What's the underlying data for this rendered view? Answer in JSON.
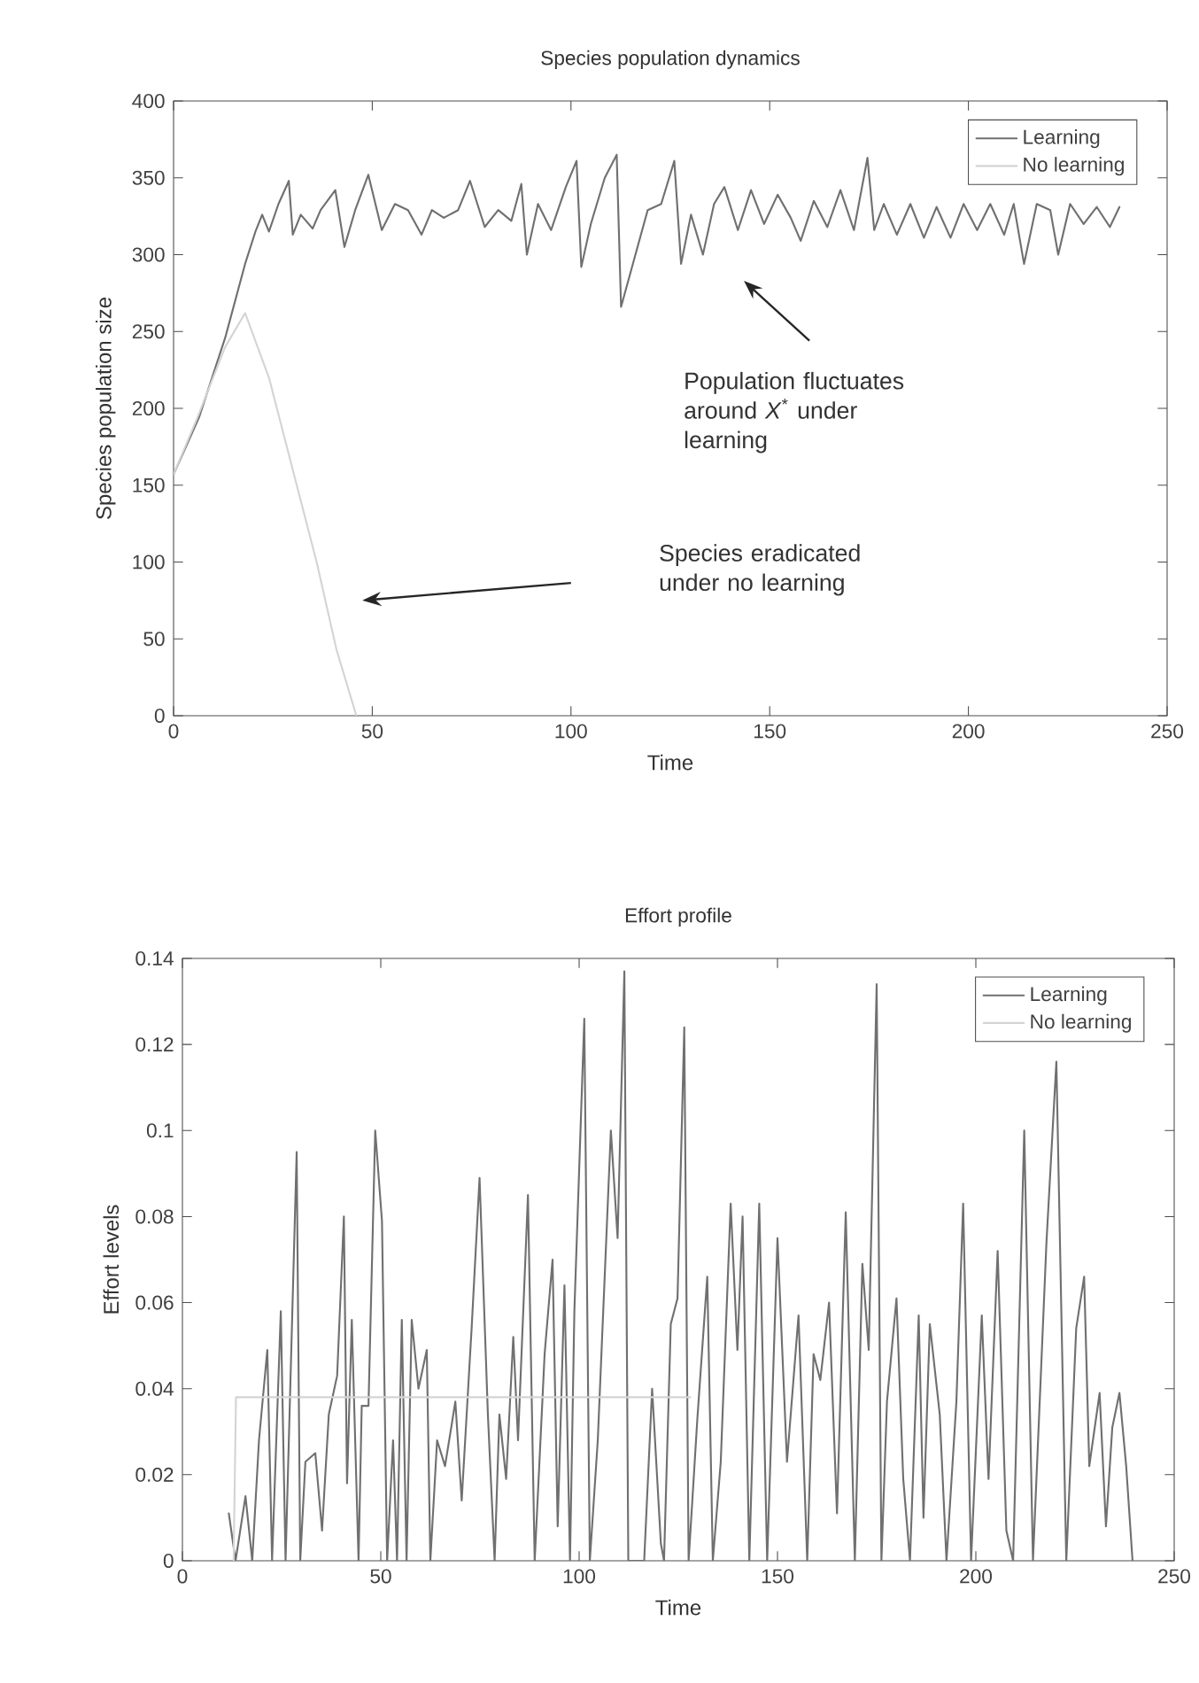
{
  "chart_data": [
    {
      "type": "line",
      "title": "Species population dynamics",
      "xlabel": "Time",
      "ylabel": "Species population size",
      "xlim": [
        0,
        250
      ],
      "ylim": [
        0,
        400
      ],
      "xticks": [
        0,
        50,
        100,
        150,
        200,
        250
      ],
      "yticks": [
        0,
        50,
        100,
        150,
        200,
        250,
        300,
        350,
        400
      ],
      "legend": "top right",
      "annotations": [
        "Population fluctuates around *X*$^{*}$ under learning",
        "Species eradicated under no learning"
      ],
      "series": [
        {
          "name": "Learning",
          "color": "#707070",
          "x": [
            0,
            6.4,
            13,
            18,
            20.6,
            22.3,
            24,
            26.4,
            29,
            30,
            32,
            35,
            37,
            40.7,
            43,
            45.7,
            49,
            52.4,
            55.7,
            59,
            62.4,
            65,
            68,
            71.6,
            74.6,
            78.3,
            81.7,
            85,
            87.5,
            88.9,
            91.7,
            95,
            98.7,
            101.4,
            102.6,
            105,
            108.5,
            111.5,
            112.6,
            116,
            119.3,
            122.7,
            126,
            127.7,
            130.2,
            133.2,
            136,
            138.6,
            142,
            145.3,
            148.6,
            152,
            155.3,
            157.8,
            161.1,
            164.5,
            167.8,
            171.2,
            174.6,
            176.3,
            178.7,
            182,
            185.4,
            188.8,
            192,
            195.5,
            198.8,
            202.2,
            205.5,
            209,
            211.4,
            214,
            217.2,
            220.6,
            222.6,
            225.6,
            229,
            232.3,
            235.6,
            238
          ],
          "values": [
            157,
            194,
            246,
            294,
            315,
            326,
            315,
            333,
            348,
            313,
            326,
            317,
            329,
            342,
            305,
            329,
            352,
            316,
            333,
            329,
            313,
            329,
            324,
            329,
            348,
            318,
            329,
            322,
            346,
            300,
            333,
            316,
            344,
            361,
            292,
            320,
            350,
            365,
            266,
            298,
            329,
            333,
            361,
            294,
            326,
            300,
            333,
            344,
            316,
            342,
            320,
            339,
            324,
            309,
            335,
            318,
            342,
            316,
            363,
            316,
            333,
            313,
            333,
            311,
            331,
            311,
            333,
            316,
            333,
            313,
            333,
            294,
            333,
            329,
            300,
            333,
            320,
            331,
            318,
            331
          ]
        },
        {
          "name": "No learning",
          "color": "#d4d4d4",
          "x": [
            0,
            6,
            13,
            18,
            24,
            30,
            36,
            41,
            46
          ],
          "values": [
            157,
            194,
            240,
            262,
            220,
            160,
            100,
            43,
            0
          ]
        }
      ]
    },
    {
      "type": "line",
      "title": "Effort profile",
      "xlabel": "Time",
      "ylabel": "Effort levels",
      "xlim": [
        0,
        250
      ],
      "ylim": [
        0,
        0.14
      ],
      "xticks": [
        0,
        50,
        100,
        150,
        200,
        250
      ],
      "yticks": [
        0,
        0.02,
        0.04,
        0.06,
        0.08,
        0.1,
        0.12,
        0.14
      ],
      "legend": "top right",
      "series": [
        {
          "name": "Learning",
          "color": "#707070",
          "x": [
            11.7,
            13.4,
            15.9,
            17.6,
            19.3,
            21.4,
            22.6,
            24.8,
            26,
            28.8,
            29.7,
            31,
            33.5,
            35.2,
            36.9,
            39,
            40.7,
            41.5,
            42.7,
            44.4,
            45.2,
            46.9,
            48.6,
            50.3,
            51.6,
            53.1,
            54.1,
            55.3,
            56.5,
            57.8,
            59.5,
            61.6,
            62.5,
            64.2,
            66.2,
            68.8,
            70.4,
            72.9,
            74.9,
            77,
            78.7,
            79.9,
            81.6,
            83.4,
            84.6,
            87.1,
            88.8,
            91.3,
            93.3,
            94.6,
            96.3,
            97.7,
            98.8,
            101.3,
            102.7,
            104.7,
            108,
            109.7,
            111.4,
            112.4,
            116.4,
            118.4,
            120.6,
            121.4,
            123.1,
            124.8,
            126.5,
            127.6,
            129.8,
            132.3,
            133.7,
            135.7,
            138.2,
            139.9,
            141.2,
            142.9,
            145.4,
            147.4,
            150,
            152.4,
            155.3,
            157.5,
            159.1,
            160.8,
            163,
            165,
            167.2,
            169.5,
            171.4,
            173,
            175,
            176.2,
            177.6,
            180,
            181.7,
            183.4,
            185.6,
            186.8,
            188.4,
            190.9,
            192.6,
            195.1,
            196.8,
            198.8,
            201.5,
            203.2,
            205.5,
            207.7,
            209.4,
            212.2,
            214.4,
            217.8,
            220.3,
            222.8,
            225.3,
            227.3,
            228.6,
            231.2,
            232.8,
            234.4,
            236.2,
            237.9,
            239.5
          ],
          "values": [
            0.011,
            0,
            0.015,
            0,
            0.028,
            0.049,
            0,
            0.058,
            0,
            0.095,
            0,
            0.023,
            0.025,
            0.007,
            0.034,
            0.043,
            0.08,
            0.018,
            0.056,
            0,
            0.036,
            0.036,
            0.1,
            0.079,
            0,
            0.028,
            0,
            0.056,
            0,
            0.056,
            0.04,
            0.049,
            0,
            0.028,
            0.022,
            0.037,
            0.014,
            0.054,
            0.089,
            0.034,
            0,
            0.034,
            0.019,
            0.052,
            0.028,
            0.085,
            0,
            0.048,
            0.07,
            0.008,
            0.064,
            0,
            0.058,
            0.126,
            0,
            0.028,
            0.1,
            0.075,
            0.137,
            0,
            0,
            0.04,
            0.004,
            0,
            0.055,
            0.061,
            0.124,
            0,
            0.033,
            0.066,
            0,
            0.023,
            0.083,
            0.049,
            0.08,
            0,
            0.083,
            0,
            0.075,
            0.023,
            0.057,
            0,
            0.048,
            0.042,
            0.06,
            0.011,
            0.081,
            0,
            0.069,
            0.049,
            0.134,
            0,
            0.037,
            0.061,
            0.019,
            0,
            0.057,
            0.01,
            0.055,
            0.034,
            0,
            0.037,
            0.083,
            0,
            0.057,
            0.019,
            0.072,
            0.007,
            0,
            0.1,
            0,
            0.074,
            0.116,
            0,
            0.054,
            0.066,
            0.022,
            0.039,
            0.008,
            0.031,
            0.039,
            0.022,
            0
          ]
        },
        {
          "name": "No learning",
          "color": "#d4d4d4",
          "x": [
            12.9,
            13.5,
            128
          ],
          "values": [
            0,
            0.038,
            0.038
          ]
        }
      ]
    }
  ]
}
